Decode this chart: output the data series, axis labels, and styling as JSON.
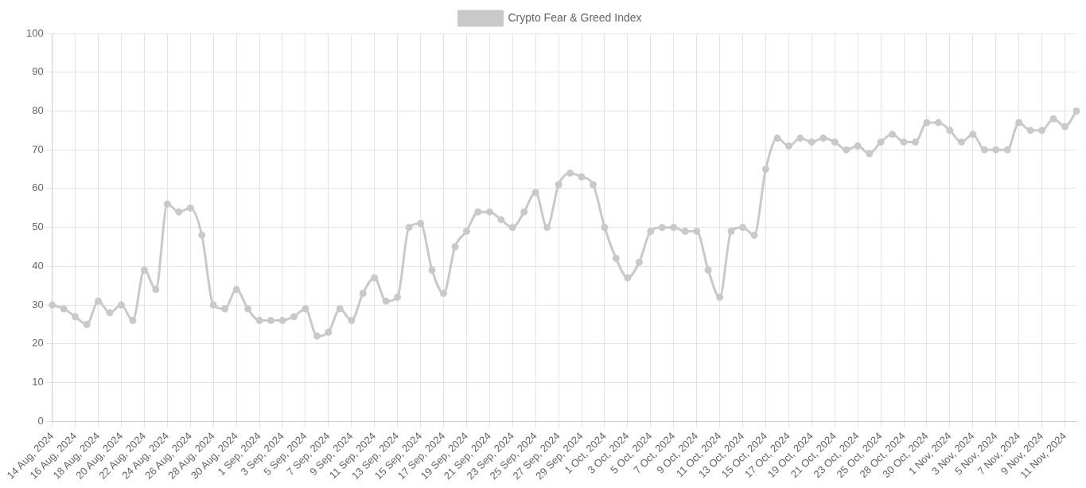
{
  "chart_data": {
    "type": "line",
    "categories": [
      "14 Aug, 2024",
      null,
      "16 Aug, 2024",
      null,
      "18 Aug, 2024",
      null,
      "20 Aug, 2024",
      null,
      "22 Aug, 2024",
      null,
      "24 Aug, 2024",
      null,
      "26 Aug, 2024",
      null,
      "28 Aug, 2024",
      null,
      "30 Aug, 2024",
      null,
      "1 Sep, 2024",
      null,
      "3 Sep, 2024",
      null,
      "5 Sep, 2024",
      null,
      "7 Sep, 2024",
      null,
      "9 Sep, 2024",
      null,
      "11 Sep, 2024",
      null,
      "13 Sep, 2024",
      null,
      "15 Sep, 2024",
      null,
      "17 Sep, 2024",
      null,
      "19 Sep, 2024",
      null,
      "21 Sep, 2024",
      null,
      "23 Sep, 2024",
      null,
      "25 Sep, 2024",
      null,
      "27 Sep, 2024",
      null,
      "29 Sep, 2024",
      null,
      "1 Oct, 2024",
      null,
      "3 Oct, 2024",
      null,
      "5 Oct, 2024",
      null,
      "7 Oct, 2024",
      null,
      "9 Oct, 2024",
      null,
      "11 Oct, 2024",
      null,
      "13 Oct, 2024",
      null,
      "15 Oct, 2024",
      null,
      "17 Oct, 2024",
      null,
      "19 Oct, 2024",
      null,
      "21 Oct, 2024",
      null,
      "23 Oct, 2024",
      null,
      "25 Oct, 2024",
      null,
      "28 Oct, 2024",
      null,
      "30 Oct, 2024",
      null,
      "1 Nov, 2024",
      null,
      "3 Nov, 2024",
      null,
      "5 Nov, 2024",
      null,
      "7 Nov, 2024",
      null,
      "9 Nov, 2024",
      null,
      "11 Nov, 2024",
      null
    ],
    "series": [
      {
        "name": "Crypto Fear & Greed Index",
        "color": "#c9c9c9",
        "values": [
          30,
          29,
          27,
          25,
          31,
          28,
          30,
          26,
          39,
          34,
          56,
          54,
          55,
          48,
          30,
          29,
          34,
          29,
          26,
          26,
          26,
          27,
          29,
          22,
          23,
          29,
          26,
          33,
          37,
          31,
          32,
          50,
          51,
          39,
          33,
          45,
          49,
          54,
          54,
          52,
          50,
          54,
          59,
          50,
          61,
          64,
          63,
          61,
          50,
          42,
          37,
          41,
          49,
          50,
          50,
          49,
          49,
          39,
          32,
          49,
          50,
          48,
          65,
          73,
          71,
          73,
          72,
          73,
          72,
          70,
          71,
          69,
          72,
          74,
          72,
          72,
          77,
          77,
          75,
          72,
          74,
          70,
          70,
          70,
          77,
          75,
          75,
          78,
          76,
          80
        ]
      }
    ],
    "ylim": [
      0,
      100
    ],
    "yticks": [
      0,
      10,
      20,
      30,
      40,
      50,
      60,
      70,
      80,
      90,
      100
    ],
    "grid": true,
    "legend": "top",
    "marker": "circle",
    "line_style": "solid"
  }
}
